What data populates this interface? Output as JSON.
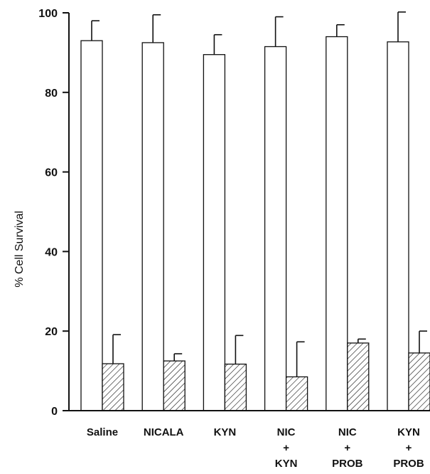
{
  "chart_data": {
    "type": "bar",
    "title": "",
    "xlabel": "",
    "ylabel": "% Cell Survival",
    "ylim": [
      0,
      100
    ],
    "yticks": [
      0,
      20,
      40,
      60,
      80,
      100
    ],
    "grid": false,
    "legend": "none",
    "categories": [
      [
        "Saline"
      ],
      [
        "NICALA"
      ],
      [
        "KYN"
      ],
      [
        "NIC",
        "+",
        "KYN"
      ],
      [
        "NIC",
        "+",
        "PROB"
      ],
      [
        "KYN",
        "+",
        "PROB"
      ]
    ],
    "series": [
      {
        "fill": "open",
        "values": [
          93,
          92.5,
          89.5,
          91.5,
          94,
          92.7
        ],
        "error": [
          5,
          7,
          5,
          7.5,
          3,
          7.5
        ]
      },
      {
        "fill": "hatched",
        "values": [
          11.8,
          12.5,
          11.7,
          8.5,
          17,
          14.5
        ],
        "error": [
          7.3,
          1.8,
          7.2,
          8.8,
          1,
          5.5
        ]
      }
    ]
  }
}
